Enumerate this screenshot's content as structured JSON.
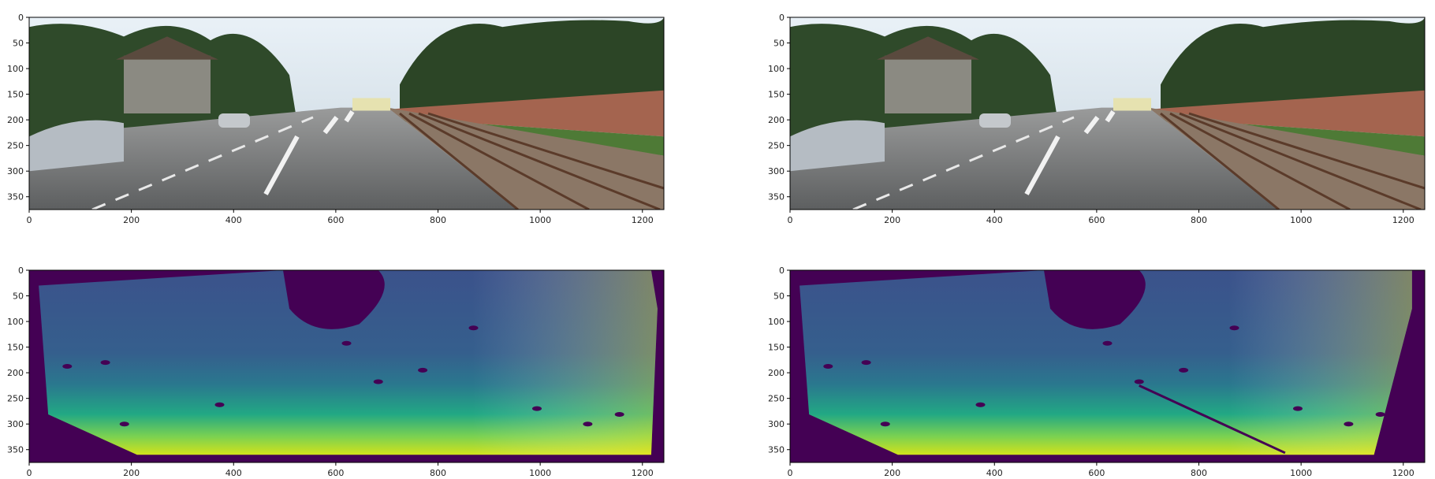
{
  "chart_data": [
    {
      "type": "image",
      "panel": "top-left",
      "content": "rgb-street-scene",
      "xlim": [
        0,
        1242
      ],
      "ylim": [
        375,
        0
      ],
      "xticks": [
        0,
        200,
        400,
        600,
        800,
        1000,
        1200
      ],
      "yticks": [
        0,
        50,
        100,
        150,
        200,
        250,
        300,
        350
      ]
    },
    {
      "type": "image",
      "panel": "top-right",
      "content": "rgb-street-scene",
      "xlim": [
        0,
        1242
      ],
      "ylim": [
        375,
        0
      ],
      "xticks": [
        0,
        200,
        400,
        600,
        800,
        1000,
        1200
      ],
      "yticks": [
        0,
        50,
        100,
        150,
        200,
        250,
        300,
        350
      ]
    },
    {
      "type": "heatmap",
      "panel": "bottom-left",
      "content": "depth-map",
      "colormap": "viridis",
      "xlim": [
        0,
        1242
      ],
      "ylim": [
        375,
        0
      ],
      "xticks": [
        0,
        200,
        400,
        600,
        800,
        1000,
        1200
      ],
      "yticks": [
        0,
        50,
        100,
        150,
        200,
        250,
        300,
        350
      ]
    },
    {
      "type": "heatmap",
      "panel": "bottom-right",
      "content": "depth-map",
      "colormap": "viridis",
      "xlim": [
        0,
        1242
      ],
      "ylim": [
        375,
        0
      ],
      "xticks": [
        0,
        200,
        400,
        600,
        800,
        1000,
        1200
      ],
      "yticks": [
        0,
        50,
        100,
        150,
        200,
        250,
        300,
        350
      ]
    }
  ],
  "colors": {
    "sky": "#dce9f2",
    "road": "#77797a",
    "viridis_dark": "#440154",
    "viridis_mid": "#31688e",
    "viridis_teal": "#35b779",
    "viridis_yellow": "#fde725"
  }
}
